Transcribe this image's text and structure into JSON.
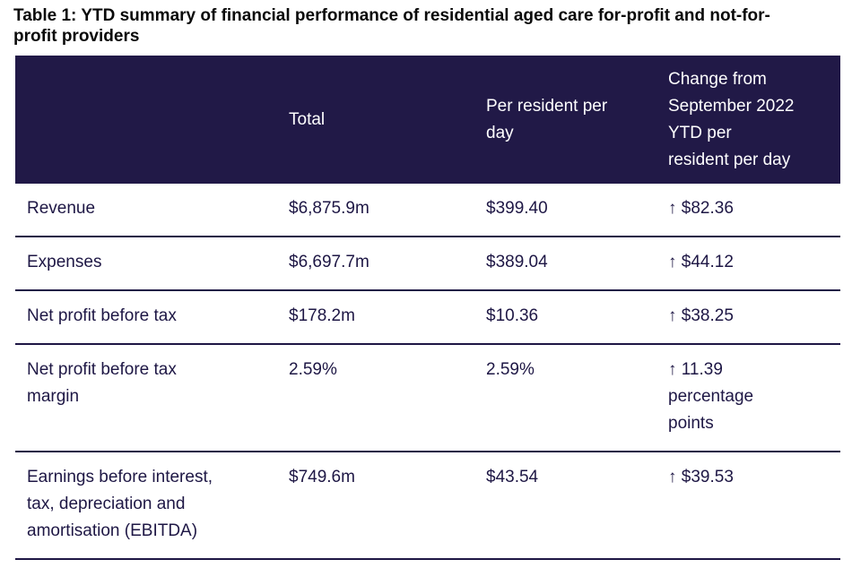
{
  "colors": {
    "header_background": "#211947",
    "header_text": "#ffffff",
    "body_text": "#1e1745",
    "row_divider": "#1e1745",
    "title_text": "#0a0a0a",
    "page_background": "#ffffff"
  },
  "title": "Table 1: YTD summary of financial performance of residential aged care for-profit and not-for-\nprofit providers",
  "table": {
    "columns": {
      "label": "",
      "total": "Total",
      "per_day": "Per resident per\nday",
      "change": "Change from\nSeptember 2022\nYTD per\nresident per day"
    },
    "rows": [
      {
        "label": "Revenue",
        "total": "$6,875.9m",
        "per_day": "$399.40",
        "change": "↑ $82.36"
      },
      {
        "label": "Expenses",
        "total": "$6,697.7m",
        "per_day": "$389.04",
        "change": "↑ $44.12"
      },
      {
        "label": "Net profit before tax",
        "total": "$178.2m",
        "per_day": "$10.36",
        "change": "↑ $38.25"
      },
      {
        "label": "Net profit before tax\nmargin",
        "total": "2.59%",
        "per_day": "2.59%",
        "change": "↑ 11.39\npercentage\npoints"
      },
      {
        "label": "Earnings before interest,\ntax, depreciation and\namortisation (EBITDA)",
        "total": "$749.6m",
        "per_day": "$43.54",
        "change": "↑ $39.53"
      }
    ]
  }
}
